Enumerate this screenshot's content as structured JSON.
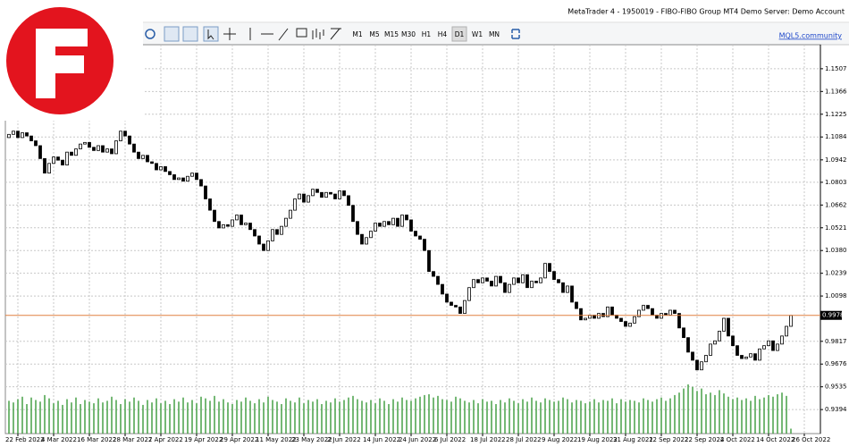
{
  "window": {
    "title": "MetaTrader 4 - 1950019 - FIBO-FIBO Group MT4 Demo Server: Demo Account",
    "link": "MQL5.community",
    "timeframes": [
      "M1",
      "M5",
      "M15",
      "M30",
      "H1",
      "H4",
      "D1",
      "W1",
      "MN"
    ],
    "active_timeframe": "D1"
  },
  "chart_data": {
    "type": "candlestick",
    "open": [
      1.108,
      1.11,
      1.112,
      1.108,
      1.111,
      1.109,
      1.106,
      1.103,
      1.095,
      1.086,
      1.092,
      1.096,
      1.094,
      1.091,
      1.099,
      1.097,
      1.101,
      1.104,
      1.105,
      1.102,
      1.1,
      1.103,
      1.099,
      1.101,
      1.098,
      1.106,
      1.112,
      1.109,
      1.104,
      1.099,
      1.095,
      1.097,
      1.093,
      1.092,
      1.088,
      1.09,
      1.087,
      1.085,
      1.082,
      1.083,
      1.081,
      1.084,
      1.086,
      1.082,
      1.078,
      1.07,
      1.063,
      1.056,
      1.052,
      1.054,
      1.053,
      1.057,
      1.06,
      1.054,
      1.055,
      1.051,
      1.047,
      1.042,
      1.038,
      1.044,
      1.051,
      1.048,
      1.053,
      1.058,
      1.063,
      1.07,
      1.073,
      1.068,
      1.072,
      1.076,
      1.074,
      1.071,
      1.074,
      1.073,
      1.07,
      1.075,
      1.072,
      1.066,
      1.056,
      1.048,
      1.042,
      1.046,
      1.05,
      1.055,
      1.053,
      1.056,
      1.054,
      1.058,
      1.053,
      1.06,
      1.057,
      1.05,
      1.047,
      1.045,
      1.038,
      1.025,
      1.022,
      1.017,
      1.011,
      1.006,
      1.004,
      1.003,
      0.999,
      1.007,
      1.015,
      1.02,
      1.018,
      1.021,
      1.019,
      1.016,
      1.022,
      1.018,
      1.012,
      1.017,
      1.021,
      1.018,
      1.023,
      1.015,
      1.019,
      1.018,
      1.021,
      1.03,
      1.025,
      1.02,
      1.018,
      1.012,
      1.016,
      1.006,
      1.002,
      0.995,
      0.996,
      0.998,
      0.996,
      0.999,
      0.997,
      1.003,
      0.998,
      0.996,
      0.994,
      0.991,
      0.993,
      0.997,
      1.001,
      1.004,
      1.002,
      0.998,
      0.996,
      0.999,
      0.998,
      1.001,
      0.999,
      0.99,
      0.984,
      0.975,
      0.97,
      0.964,
      0.969,
      0.973,
      0.98,
      0.982,
      0.988,
      0.996,
      0.985,
      0.979,
      0.973,
      0.971,
      0.972,
      0.974,
      0.97,
      0.977,
      0.979,
      0.982,
      0.976,
      0.98,
      0.985,
      0.991
    ],
    "close": [
      1.11,
      1.112,
      1.108,
      1.111,
      1.109,
      1.106,
      1.103,
      1.095,
      1.086,
      1.092,
      1.096,
      1.094,
      1.091,
      1.099,
      1.097,
      1.101,
      1.104,
      1.105,
      1.102,
      1.1,
      1.103,
      1.099,
      1.101,
      1.098,
      1.106,
      1.112,
      1.109,
      1.104,
      1.099,
      1.095,
      1.097,
      1.093,
      1.092,
      1.088,
      1.09,
      1.087,
      1.085,
      1.082,
      1.083,
      1.081,
      1.084,
      1.086,
      1.082,
      1.078,
      1.07,
      1.063,
      1.056,
      1.052,
      1.054,
      1.053,
      1.057,
      1.06,
      1.054,
      1.055,
      1.051,
      1.047,
      1.042,
      1.038,
      1.044,
      1.051,
      1.048,
      1.053,
      1.058,
      1.063,
      1.07,
      1.073,
      1.068,
      1.072,
      1.076,
      1.074,
      1.071,
      1.074,
      1.073,
      1.07,
      1.075,
      1.072,
      1.066,
      1.056,
      1.048,
      1.042,
      1.046,
      1.05,
      1.055,
      1.053,
      1.056,
      1.054,
      1.058,
      1.053,
      1.06,
      1.057,
      1.05,
      1.047,
      1.045,
      1.038,
      1.025,
      1.022,
      1.017,
      1.011,
      1.006,
      1.004,
      1.003,
      0.999,
      1.007,
      1.015,
      1.02,
      1.018,
      1.021,
      1.019,
      1.016,
      1.022,
      1.018,
      1.012,
      1.017,
      1.021,
      1.018,
      1.023,
      1.015,
      1.019,
      1.018,
      1.021,
      1.03,
      1.025,
      1.02,
      1.018,
      1.012,
      1.016,
      1.006,
      1.002,
      0.995,
      0.996,
      0.998,
      0.996,
      0.999,
      0.997,
      1.003,
      0.998,
      0.996,
      0.994,
      0.991,
      0.993,
      0.997,
      1.001,
      1.004,
      1.002,
      0.998,
      0.996,
      0.999,
      0.998,
      1.001,
      0.999,
      0.99,
      0.984,
      0.975,
      0.97,
      0.964,
      0.969,
      0.973,
      0.98,
      0.982,
      0.988,
      0.996,
      0.985,
      0.979,
      0.973,
      0.971,
      0.972,
      0.974,
      0.97,
      0.977,
      0.979,
      0.982,
      0.976,
      0.98,
      0.985,
      0.991,
      0.9978
    ],
    "volume": [
      40,
      38,
      42,
      45,
      36,
      44,
      41,
      39,
      47,
      43,
      37,
      40,
      35,
      42,
      38,
      44,
      36,
      41,
      39,
      37,
      43,
      38,
      40,
      45,
      41,
      36,
      42,
      39,
      44,
      40,
      35,
      41,
      38,
      43,
      37,
      40,
      36,
      42,
      39,
      44,
      38,
      41,
      37,
      45,
      43,
      40,
      46,
      39,
      42,
      38,
      36,
      41,
      39,
      44,
      40,
      37,
      42,
      38,
      45,
      41,
      39,
      36,
      43,
      40,
      38,
      44,
      37,
      41,
      39,
      42,
      36,
      40,
      38,
      43,
      39,
      41,
      44,
      46,
      42,
      40,
      38,
      41,
      37,
      43,
      40,
      36,
      42,
      39,
      44,
      41,
      40,
      43,
      45,
      47,
      48,
      44,
      46,
      42,
      41,
      39,
      45,
      43,
      40,
      38,
      41,
      37,
      42,
      39,
      40,
      36,
      41,
      38,
      43,
      40,
      37,
      42,
      39,
      44,
      40,
      38,
      43,
      41,
      39,
      40,
      44,
      42,
      38,
      41,
      40,
      37,
      39,
      42,
      38,
      41,
      40,
      43,
      37,
      42,
      39,
      41,
      40,
      38,
      43,
      41,
      39,
      42,
      44,
      40,
      43,
      47,
      50,
      55,
      60,
      57,
      52,
      55,
      48,
      50,
      47,
      53,
      49,
      45,
      42,
      44,
      41,
      43,
      40,
      46,
      42,
      44,
      47,
      45,
      48,
      50,
      46,
      6
    ],
    "ylim": [
      0.9245,
      1.1656
    ],
    "yticks": [
      1.1507,
      1.1366,
      1.1225,
      1.1084,
      1.0942,
      1.0803,
      1.0662,
      1.0521,
      {
        "value": 1.038,
        "label": "1.0380"
      },
      1.0239,
      1.0098,
      0.9817,
      0.9676,
      0.9535,
      0.9394
    ],
    "xticks": [
      {
        "value": 2,
        "label": "22 Feb 2022"
      },
      {
        "value": 10,
        "label": "4 Mar 2022"
      },
      {
        "value": 18,
        "label": "16 Mar 2022"
      },
      {
        "value": 26,
        "label": "28 Mar 2022"
      },
      {
        "value": 34,
        "label": "7 Apr 2022"
      },
      {
        "value": 42,
        "label": "19 Apr 2022"
      },
      {
        "value": 50,
        "label": "29 Apr 2022"
      },
      {
        "value": 58,
        "label": "11 May 2022"
      },
      {
        "value": 66,
        "label": "23 May 2022"
      },
      {
        "value": 74,
        "label": "2 Jun 2022"
      },
      {
        "value": 82,
        "label": "14 Jun 2022"
      },
      {
        "value": 90,
        "label": "24 Jun 2022"
      },
      {
        "value": 98,
        "label": "6 Jul 2022"
      },
      {
        "value": 106,
        "label": "18 Jul 2022"
      },
      {
        "value": 114,
        "label": "28 Jul 2022"
      },
      {
        "value": 122,
        "label": "9 Aug 2022"
      },
      {
        "value": 130,
        "label": "19 Aug 2022"
      },
      {
        "value": 138,
        "label": "31 Aug 2022"
      },
      {
        "value": 146,
        "label": "12 Sep 2022"
      },
      {
        "value": 154,
        "label": "22 Sep 2022"
      },
      {
        "value": 162,
        "label": "4 Oct 2022"
      },
      {
        "value": 170,
        "label": "14 Oct 2022"
      },
      {
        "value": 178,
        "label": "26 Oct 2022"
      }
    ],
    "current_price": 0.9978,
    "grid": true,
    "up_color": "#ffffff",
    "down_color": "#000000",
    "volume_color": "#3a9a3a",
    "price_line_color": "#e08040"
  }
}
